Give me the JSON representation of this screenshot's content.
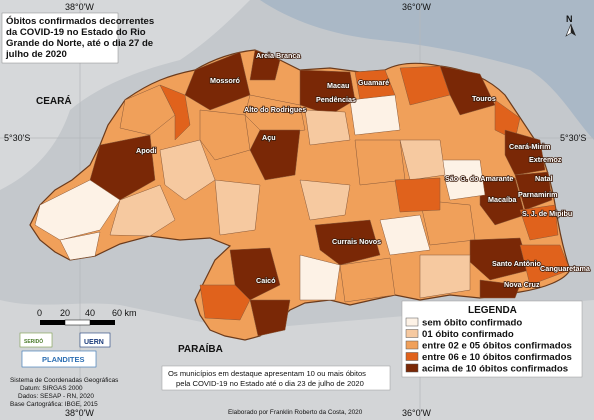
{
  "title_lines": [
    "Óbitos confirmados decorrentes",
    "da COVID-19 no Estado do Rio",
    "Grande do Norte, até o dia 27 de",
    "julho de 2020"
  ],
  "coords": {
    "lon_west": "38°0'W",
    "lon_east": "36°0'W",
    "lat_left": "5°30'S",
    "lat_right": "5°30'S"
  },
  "regions": {
    "ceara": "CEARÁ",
    "paraiba": "PARAÍBA"
  },
  "north_arrow": "N",
  "scale": {
    "ticks": [
      "0",
      "20",
      "40",
      "60 km"
    ]
  },
  "legend": {
    "title": "LEGENDA",
    "items": [
      {
        "label": "sem óbito confirmado",
        "color": "#fdf2e6"
      },
      {
        "label": "01 óbito confirmado",
        "color": "#f6c9a0"
      },
      {
        "label": "entre 02 e 05 óbitos confirmados",
        "color": "#f0a05a"
      },
      {
        "label": "entre 06 e 10 óbitos confirmados",
        "color": "#e0621c"
      },
      {
        "label": "acima de 10 óbitos confirmados",
        "color": "#7a2806"
      }
    ]
  },
  "note_lines": [
    "Os municípios em destaque apresentam 10 ou mais óbitos",
    "pela COVID-19 no Estado até o dia 23 de julho de 2020"
  ],
  "logos": {
    "left": "SERIDÓ",
    "right": "UERN",
    "plandites": "PLANDITES"
  },
  "footer_lines": [
    "Sistema de Coordenadas Geográficas",
    "Datum: SIRGAS 2000",
    "Dados: SESAP - RN, 2020",
    "Base Cartográfica: IBGE, 2015"
  ],
  "author": "Elaborado por Franklin Roberto da Costa, 2020",
  "cities": [
    "Areia Branca",
    "Mossoró",
    "Macau",
    "Guamaré",
    "Pendências",
    "Alto do Rodrigues",
    "Touros",
    "Açu",
    "Apodi",
    "Ceará-Mirim",
    "Extremoz",
    "Natal",
    "Parnamirim",
    "São G. do Amarante",
    "Macaíba",
    "S. J. de Mipibu",
    "Currais Novos",
    "Santo Antônio",
    "Canguaretama",
    "Nova Cruz",
    "Caicó"
  ]
}
